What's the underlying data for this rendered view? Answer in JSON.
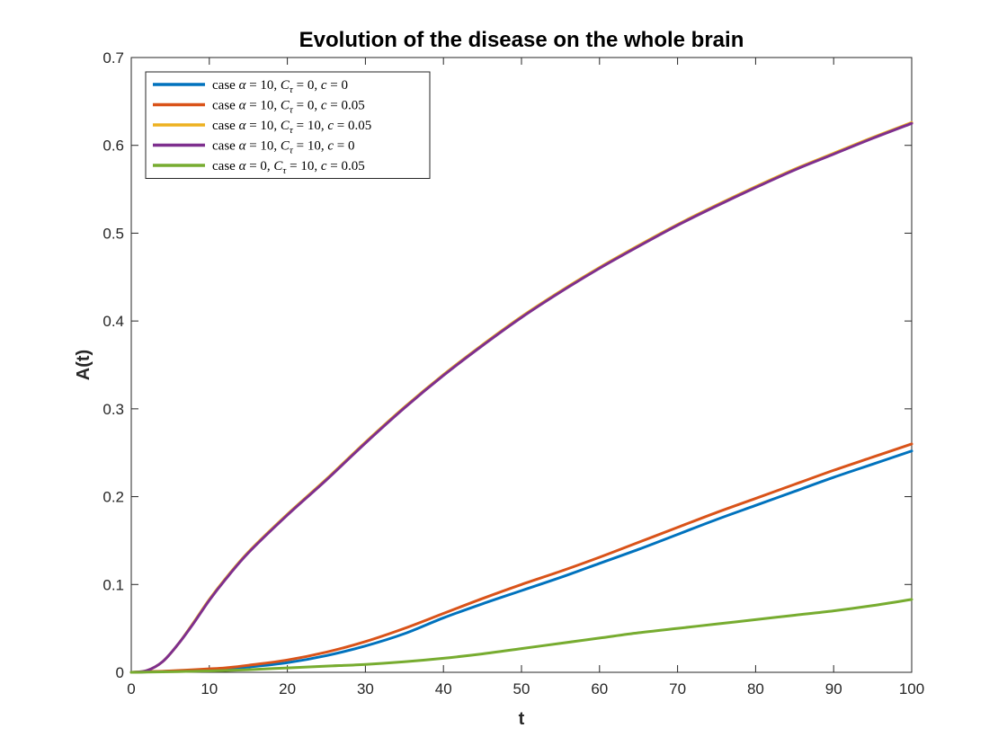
{
  "chart_data": {
    "type": "line",
    "title": "Evolution of the disease on the whole brain",
    "xlabel": "t",
    "ylabel": "A(t)",
    "xlim": [
      0,
      100
    ],
    "ylim": [
      0,
      0.7
    ],
    "xticks": [
      0,
      10,
      20,
      30,
      40,
      50,
      60,
      70,
      80,
      90,
      100
    ],
    "yticks": [
      0,
      0.1,
      0.2,
      0.3,
      0.4,
      0.5,
      0.6,
      0.7
    ],
    "xtick_labels": [
      "0",
      "10",
      "20",
      "30",
      "40",
      "50",
      "60",
      "70",
      "80",
      "90",
      "100"
    ],
    "ytick_labels": [
      "0",
      "0.1",
      "0.2",
      "0.3",
      "0.4",
      "0.5",
      "0.6",
      "0.7"
    ],
    "grid": false,
    "legend_position": "top-left",
    "x": [
      0,
      2,
      4,
      6,
      8,
      10,
      12,
      15,
      20,
      25,
      30,
      35,
      40,
      45,
      50,
      55,
      60,
      65,
      70,
      75,
      80,
      85,
      90,
      95,
      100
    ],
    "series": [
      {
        "name": "case α = 10, Cτ = 0, c = 0",
        "legend": {
          "pre": "case ",
          "a_sym": "α",
          "a_val": " = 10, ",
          "c_sym": "C",
          "c_sub": "τ",
          "c_val": " = 0, ",
          "s_sym": "c",
          "s_val": " = 0"
        },
        "color": "#0072BD",
        "values": [
          0,
          0.0005,
          0.001,
          0.0015,
          0.002,
          0.003,
          0.004,
          0.006,
          0.011,
          0.019,
          0.03,
          0.044,
          0.062,
          0.078,
          0.093,
          0.108,
          0.124,
          0.14,
          0.157,
          0.174,
          0.19,
          0.206,
          0.222,
          0.237,
          0.252
        ]
      },
      {
        "name": "case α = 10, Cτ = 0, c = 0.05",
        "legend": {
          "pre": "case ",
          "a_sym": "α",
          "a_val": " = 10, ",
          "c_sym": "C",
          "c_sub": "τ",
          "c_val": " = 0, ",
          "s_sym": "c",
          "s_val": " = 0.05"
        },
        "color": "#D95319",
        "values": [
          0,
          0.0006,
          0.0012,
          0.002,
          0.003,
          0.004,
          0.005,
          0.008,
          0.014,
          0.023,
          0.035,
          0.05,
          0.067,
          0.084,
          0.1,
          0.115,
          0.131,
          0.148,
          0.165,
          0.182,
          0.198,
          0.214,
          0.23,
          0.245,
          0.26
        ]
      },
      {
        "name": "case α = 10, Cτ = 10, c = 0.05",
        "legend": {
          "pre": "case ",
          "a_sym": "α",
          "a_val": " = 10, ",
          "c_sym": "C",
          "c_sub": "τ",
          "c_val": " = 10, ",
          "s_sym": "c",
          "s_val": " = 0.05"
        },
        "color": "#EDB120",
        "values": [
          0,
          0.002,
          0.012,
          0.032,
          0.057,
          0.083,
          0.106,
          0.137,
          0.18,
          0.22,
          0.262,
          0.302,
          0.339,
          0.373,
          0.405,
          0.434,
          0.461,
          0.486,
          0.51,
          0.532,
          0.553,
          0.573,
          0.591,
          0.609,
          0.626
        ]
      },
      {
        "name": "case α = 10, Cτ = 10, c = 0",
        "legend": {
          "pre": "case ",
          "a_sym": "α",
          "a_val": " = 10, ",
          "c_sym": "C",
          "c_sub": "τ",
          "c_val": " = 10, ",
          "s_sym": "c",
          "s_val": " = 0"
        },
        "color": "#7E2F8E",
        "values": [
          0,
          0.002,
          0.012,
          0.032,
          0.056,
          0.082,
          0.105,
          0.136,
          0.179,
          0.219,
          0.261,
          0.301,
          0.338,
          0.372,
          0.404,
          0.433,
          0.46,
          0.485,
          0.509,
          0.531,
          0.552,
          0.572,
          0.59,
          0.608,
          0.625
        ]
      },
      {
        "name": "case α = 0, Cτ = 10, c = 0.05",
        "legend": {
          "pre": "case ",
          "a_sym": "α",
          "a_val": " = 0, ",
          "c_sym": "C",
          "c_sub": "τ",
          "c_val": " = 10, ",
          "s_sym": "c",
          "s_val": " = 0.05"
        },
        "color": "#77AC30",
        "values": [
          0,
          0.0002,
          0.0005,
          0.0008,
          0.0012,
          0.0016,
          0.002,
          0.003,
          0.005,
          0.007,
          0.009,
          0.012,
          0.016,
          0.021,
          0.027,
          0.033,
          0.039,
          0.045,
          0.05,
          0.055,
          0.06,
          0.065,
          0.07,
          0.076,
          0.083
        ]
      }
    ]
  }
}
